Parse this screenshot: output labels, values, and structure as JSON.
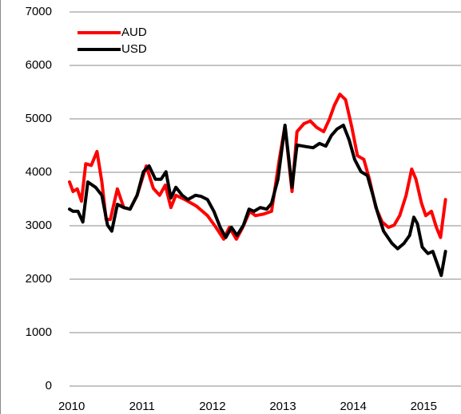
{
  "chart_data": {
    "type": "line",
    "xlim": [
      2009.97,
      2015.53
    ],
    "xticks": [
      2010,
      2011,
      2012,
      2013,
      2014,
      2015
    ],
    "ylim": [
      0,
      7000
    ],
    "yticks": [
      0,
      1000,
      2000,
      3000,
      4000,
      5000,
      6000,
      7000
    ],
    "grid": true,
    "legend": "upper left",
    "series": [
      {
        "name": "AUD",
        "color": "#ff0000",
        "x": [
          2009.97,
          2010.02,
          2010.08,
          2010.14,
          2010.2,
          2010.28,
          2010.36,
          2010.43,
          2010.49,
          2010.55,
          2010.65,
          2010.74,
          2010.83,
          2010.93,
          2011.06,
          2011.16,
          2011.25,
          2011.33,
          2011.41,
          2011.48,
          2011.61,
          2011.77,
          2011.93,
          2012.05,
          2012.16,
          2012.24,
          2012.34,
          2012.43,
          2012.53,
          2012.61,
          2012.73,
          2012.84,
          2012.95,
          2013.03,
          2013.13,
          2013.2,
          2013.3,
          2013.39,
          2013.48,
          2013.58,
          2013.66,
          2013.73,
          2013.81,
          2013.89,
          2013.98,
          2014.06,
          2014.15,
          2014.23,
          2014.32,
          2014.41,
          2014.5,
          2014.58,
          2014.66,
          2014.75,
          2014.83,
          2014.89,
          2014.97,
          2015.03,
          2015.11,
          2015.18,
          2015.24,
          2015.31
        ],
        "values": [
          3820,
          3640,
          3690,
          3460,
          4160,
          4130,
          4390,
          3820,
          3120,
          3120,
          3690,
          3340,
          3310,
          3570,
          4120,
          3700,
          3570,
          3760,
          3340,
          3570,
          3490,
          3370,
          3190,
          2970,
          2750,
          2970,
          2750,
          2970,
          3270,
          3190,
          3220,
          3270,
          4240,
          4870,
          3640,
          4760,
          4910,
          4960,
          4840,
          4760,
          4990,
          5250,
          5460,
          5360,
          4840,
          4310,
          4240,
          3870,
          3340,
          3070,
          2970,
          3010,
          3190,
          3570,
          4060,
          3870,
          3420,
          3190,
          3270,
          2970,
          2780,
          3490
        ]
      },
      {
        "name": "USD",
        "color": "#000000",
        "x": [
          2009.97,
          2010.02,
          2010.09,
          2010.16,
          2010.23,
          2010.34,
          2010.43,
          2010.51,
          2010.57,
          2010.65,
          2010.74,
          2010.83,
          2010.93,
          2011.02,
          2011.1,
          2011.19,
          2011.27,
          2011.34,
          2011.41,
          2011.48,
          2011.57,
          2011.65,
          2011.76,
          2011.84,
          2011.93,
          2012.02,
          2012.11,
          2012.19,
          2012.27,
          2012.35,
          2012.44,
          2012.52,
          2012.59,
          2012.68,
          2012.77,
          2012.84,
          2012.93,
          2013.03,
          2013.13,
          2013.2,
          2013.33,
          2013.43,
          2013.52,
          2013.61,
          2013.69,
          2013.77,
          2013.86,
          2013.94,
          2014.02,
          2014.11,
          2014.2,
          2014.28,
          2014.34,
          2014.43,
          2014.55,
          2014.63,
          2014.72,
          2014.8,
          2014.86,
          2014.91,
          2014.98,
          2015.06,
          2015.13,
          2015.19,
          2015.25,
          2015.31
        ],
        "values": [
          3310,
          3270,
          3270,
          3070,
          3820,
          3720,
          3570,
          3010,
          2900,
          3400,
          3340,
          3310,
          3570,
          4010,
          4120,
          3870,
          3870,
          4010,
          3520,
          3720,
          3570,
          3490,
          3570,
          3550,
          3490,
          3270,
          2970,
          2780,
          2970,
          2820,
          3010,
          3310,
          3270,
          3340,
          3310,
          3420,
          3870,
          4880,
          3720,
          4510,
          4480,
          4460,
          4540,
          4490,
          4690,
          4810,
          4880,
          4610,
          4240,
          4010,
          3940,
          3570,
          3270,
          2900,
          2670,
          2570,
          2670,
          2820,
          3160,
          3040,
          2600,
          2480,
          2520,
          2300,
          2070,
          2520
        ]
      }
    ]
  }
}
